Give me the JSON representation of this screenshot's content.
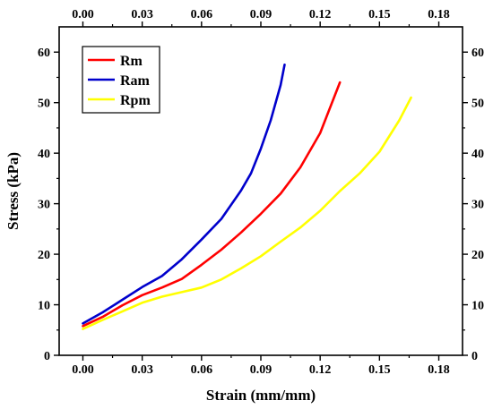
{
  "chart_data": {
    "type": "line",
    "xlabel": "Strain (mm/mm)",
    "ylabel": "Stress (kPa)",
    "xlim": [
      -0.012,
      0.192
    ],
    "ylim": [
      0,
      65
    ],
    "x_ticks": [
      "0.00",
      "0.03",
      "0.06",
      "0.09",
      "0.12",
      "0.15",
      "0.18"
    ],
    "x_tick_values": [
      0,
      0.03,
      0.06,
      0.09,
      0.12,
      0.15,
      0.18
    ],
    "y_ticks": [
      "0",
      "10",
      "20",
      "30",
      "40",
      "50",
      "60"
    ],
    "y_tick_values": [
      0,
      10,
      20,
      30,
      40,
      50,
      60
    ],
    "mirror_axes": true,
    "grid": false,
    "legend_position": "top-left",
    "series": [
      {
        "name": "Rm",
        "color": "#ff0000",
        "x": [
          0,
          0.01,
          0.02,
          0.03,
          0.04,
          0.05,
          0.06,
          0.07,
          0.08,
          0.09,
          0.1,
          0.11,
          0.12,
          0.13
        ],
        "y": [
          5.8,
          7.6,
          9.9,
          11.9,
          13.4,
          15.1,
          17.9,
          20.9,
          24.3,
          28.0,
          32.0,
          37.2,
          44.0,
          54.0
        ]
      },
      {
        "name": "Ram",
        "color": "#0000cc",
        "x": [
          0,
          0.01,
          0.02,
          0.03,
          0.04,
          0.05,
          0.06,
          0.07,
          0.08,
          0.085,
          0.09,
          0.095,
          0.1,
          0.102
        ],
        "y": [
          6.3,
          8.5,
          11.0,
          13.5,
          15.7,
          19.0,
          22.9,
          27.0,
          32.6,
          36.0,
          40.9,
          46.5,
          53.5,
          57.5
        ]
      },
      {
        "name": "Rpm",
        "color": "#ffff00",
        "x": [
          0,
          0.01,
          0.02,
          0.03,
          0.04,
          0.05,
          0.06,
          0.07,
          0.08,
          0.09,
          0.1,
          0.11,
          0.12,
          0.13,
          0.14,
          0.15,
          0.16,
          0.166
        ],
        "y": [
          5.2,
          7.0,
          8.7,
          10.4,
          11.6,
          12.5,
          13.4,
          15.0,
          17.2,
          19.6,
          22.5,
          25.3,
          28.6,
          32.5,
          36.0,
          40.3,
          46.5,
          51.0
        ]
      }
    ]
  }
}
